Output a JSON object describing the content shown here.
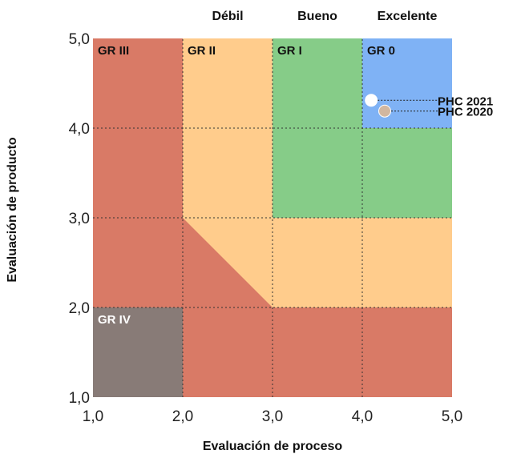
{
  "chart_data": {
    "type": "scatter",
    "xlabel": "Evaluación de proceso",
    "ylabel": "Evaluación de producto",
    "xlim": [
      1,
      5
    ],
    "ylim": [
      1,
      5
    ],
    "x_ticks": [
      "1,0",
      "2,0",
      "3,0",
      "4,0",
      "5,0"
    ],
    "y_ticks": [
      "1,0",
      "2,0",
      "3,0",
      "4,0",
      "5,0"
    ],
    "column_headers": [
      {
        "label": "Débil",
        "x_from": 2,
        "x_to": 3
      },
      {
        "label": "Bueno",
        "x_from": 3,
        "x_to": 4
      },
      {
        "label": "Excelente",
        "x_from": 4,
        "x_to": 5
      }
    ],
    "zones": [
      {
        "label": "GR III",
        "color": "#d97a66"
      },
      {
        "label": "GR II",
        "color": "#ffcc8c"
      },
      {
        "label": "GR I",
        "color": "#86cc88"
      },
      {
        "label": "GR 0",
        "color": "#7fb2f5"
      },
      {
        "label": "GR IV",
        "color": "#887b77"
      }
    ],
    "points": [
      {
        "label": "PHC 2021",
        "x": 4.1,
        "y": 4.31,
        "color": "#ffffff"
      },
      {
        "label": "PHC 2020",
        "x": 4.25,
        "y": 4.19,
        "color": "#d2b7a0"
      }
    ],
    "grid": true
  }
}
